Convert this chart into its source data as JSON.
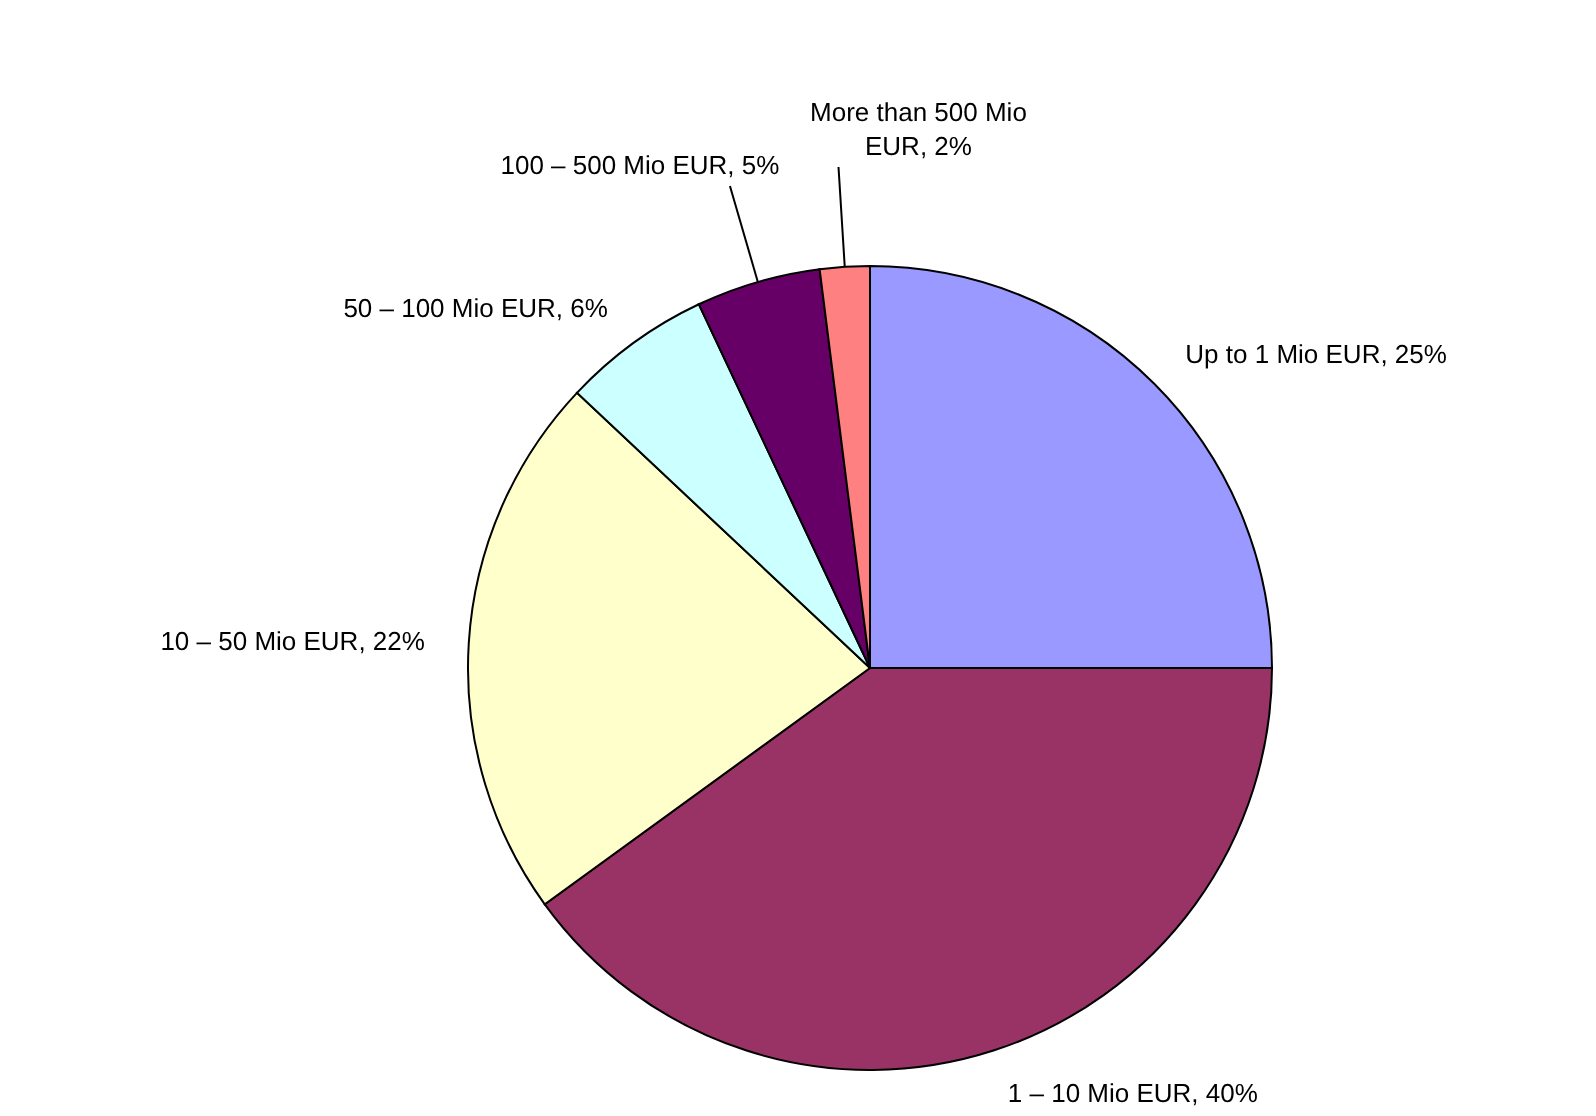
{
  "chart_data": {
    "type": "pie",
    "categories": [
      "Up to 1 Mio EUR",
      "1 – 10 Mio EUR",
      "10 – 50 Mio EUR",
      "50 –  100 Mio EUR",
      "100 – 500 Mio EUR",
      "More than 500 Mio EUR"
    ],
    "values": [
      25,
      40,
      22,
      6,
      5,
      2
    ],
    "value_labels": [
      "25%",
      "40%",
      "22%",
      "6%",
      "5%",
      "2%"
    ],
    "colors": [
      "#9999ff",
      "#993366",
      "#ffffcc",
      "#ccffff",
      "#660066",
      "#ff8080"
    ],
    "legend": false
  }
}
